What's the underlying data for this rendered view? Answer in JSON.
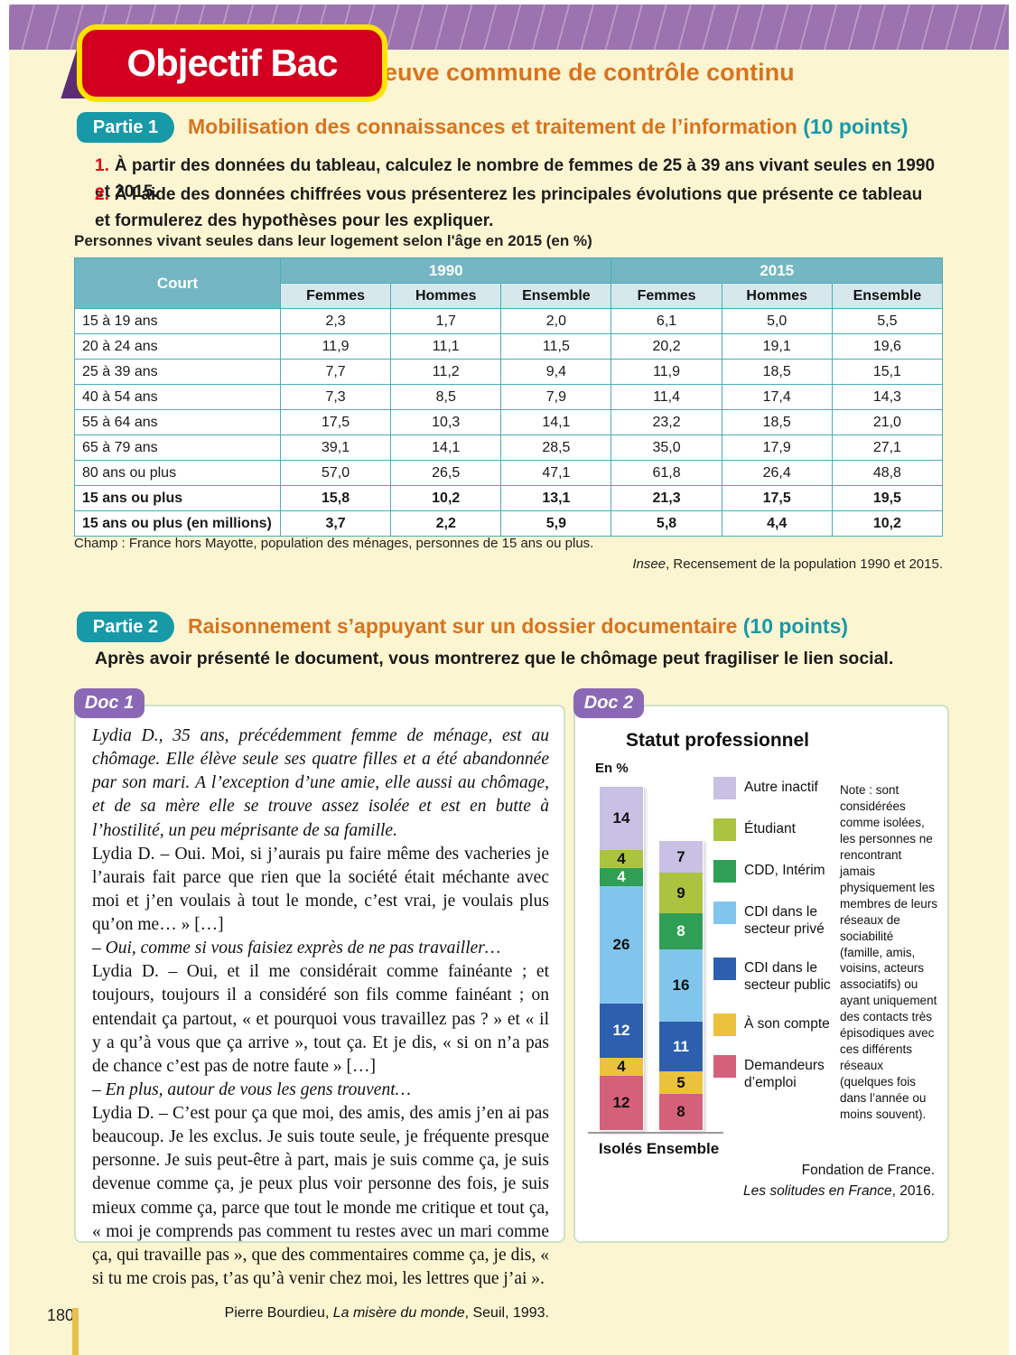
{
  "page": {
    "badge": "Objectif Bac",
    "subtitle": "Épreuve commune de contrôle continu",
    "page_number": "180"
  },
  "partie1": {
    "badge": "Partie 1",
    "title": "Mobilisation des connaissances et traitement de l’information",
    "points": "(10 points)",
    "questions": [
      {
        "num": "1.",
        "text": "À partir des données du tableau, calculez le nombre de femmes de 25 à 39 ans vivant seules en 1990 et 2015."
      },
      {
        "num": "2.",
        "text": "À l’aide des données chiffrées vous présenterez les principales évolutions que présente ce tableau et formulerez des hypothèses pour les expliquer."
      }
    ],
    "table": {
      "title": "Personnes vivant seules dans leur logement selon l'âge en 2015 (en %)",
      "corner_label": "Court",
      "year_headers": [
        "1990",
        "2015"
      ],
      "sub_headers": [
        "Femmes",
        "Hommes",
        "Ensemble"
      ],
      "rows": [
        {
          "label": "15 à 19 ans",
          "values": [
            "2,3",
            "1,7",
            "2,0",
            "6,1",
            "5,0",
            "5,5"
          ],
          "bold": false
        },
        {
          "label": "20 à 24 ans",
          "values": [
            "11,9",
            "11,1",
            "11,5",
            "20,2",
            "19,1",
            "19,6"
          ],
          "bold": false
        },
        {
          "label": "25 à 39 ans",
          "values": [
            "7,7",
            "11,2",
            "9,4",
            "11,9",
            "18,5",
            "15,1"
          ],
          "bold": false
        },
        {
          "label": "40 à 54 ans",
          "values": [
            "7,3",
            "8,5",
            "7,9",
            "11,4",
            "17,4",
            "14,3"
          ],
          "bold": false
        },
        {
          "label": "55 à 64 ans",
          "values": [
            "17,5",
            "10,3",
            "14,1",
            "23,2",
            "18,5",
            "21,0"
          ],
          "bold": false
        },
        {
          "label": "65 à 79 ans",
          "values": [
            "39,1",
            "14,1",
            "28,5",
            "35,0",
            "17,9",
            "27,1"
          ],
          "bold": false
        },
        {
          "label": "80 ans ou plus",
          "values": [
            "57,0",
            "26,5",
            "47,1",
            "61,8",
            "26,4",
            "48,8"
          ],
          "bold": false
        },
        {
          "label": "15 ans ou plus",
          "values": [
            "15,8",
            "10,2",
            "13,1",
            "21,3",
            "17,5",
            "19,5"
          ],
          "bold": true
        },
        {
          "label": "15 ans ou plus (en millions)",
          "values": [
            "3,7",
            "2,2",
            "5,9",
            "5,8",
            "4,4",
            "10,2"
          ],
          "bold": true
        }
      ],
      "champ": "Champ : France hors Mayotte, population des ménages, personnes de 15 ans ou plus.",
      "source_italic": "Insee",
      "source_rest": ", Recensement de la population 1990 et 2015."
    }
  },
  "partie2": {
    "badge": "Partie 2",
    "title": "Raisonnement s’appuyant sur un dossier documentaire",
    "points": "(10 points)",
    "instruction": "Après avoir présenté le document, vous montrerez que le chômage peut fragiliser le lien social."
  },
  "doc1": {
    "badge": "Doc 1",
    "paragraphs": [
      {
        "style": "italic",
        "text": "Lydia D., 35 ans, précédemment femme de ménage, est au chômage. Elle élève seule ses quatre filles et a été abandonnée par son mari. A l’exception d’une amie, elle aussi au chômage, et de sa mère elle se trouve assez isolée et est en butte à l’hostilité, un peu méprisante de sa famille."
      },
      {
        "style": "normal",
        "text": "Lydia D. – Oui. Moi, si j’aurais pu faire même des vacheries je l’aurais fait parce que rien que la société était méchante avec moi et j’en voulais à tout le monde, c’est vrai, je voulais plus qu’on me… » […]"
      },
      {
        "style": "italic",
        "text": "– Oui, comme si vous faisiez exprès de ne pas travailler…"
      },
      {
        "style": "normal",
        "text": "Lydia D. – Oui, et il me considérait comme fainéante ; et toujours, toujours il a considéré son fils comme fainéant ; on entendait ça partout, « et pourquoi vous travaillez pas ? » et « il y a qu’à vous que ça arrive », tout ça. Et je dis, « si on n’a pas de chance c’est pas de notre faute » […]"
      },
      {
        "style": "italic",
        "text": "– En plus, autour de vous les gens trouvent…"
      },
      {
        "style": "normal",
        "text": "Lydia D. – C’est pour ça que moi, des amis, des amis j’en ai pas beaucoup. Je les exclus. Je suis toute seule, je fréquente presque personne. Je suis peut-être à part, mais je suis comme ça, je suis devenue comme ça, je peux plus voir personne des fois, je suis mieux comme ça, parce que tout le monde me critique et tout ça, « moi je comprends pas comment tu restes avec un mari comme ça, qui travaille pas », que des commentaires comme ça, je dis, « si tu me crois pas, t’as qu’à venir chez moi, les lettres que j’ai »."
      }
    ],
    "source_pre": "Pierre Bourdieu, ",
    "source_italic": "La misère du monde",
    "source_post": ", Seuil, 1993."
  },
  "doc2": {
    "badge": "Doc 2",
    "chart_data": {
      "type": "bar",
      "stacked": true,
      "title": "Statut professionnel",
      "unit_label": "En %",
      "categories": [
        "Isolés",
        "Ensemble"
      ],
      "series": [
        {
          "name": "Autre inactif",
          "color": "#c8c1e3",
          "label_color": "#111111",
          "values": [
            14,
            7
          ]
        },
        {
          "name": "Étudiant",
          "color": "#abc440",
          "label_color": "#111111",
          "values": [
            4,
            9
          ]
        },
        {
          "name": "CDD, Intérim",
          "color": "#2f9f55",
          "label_color": "#ffffff",
          "values": [
            4,
            8
          ]
        },
        {
          "name": "CDI dans le secteur privé",
          "color": "#82c5ec",
          "label_color": "#111111",
          "values": [
            26,
            16
          ]
        },
        {
          "name": "CDI dans le secteur public",
          "color": "#2d5fae",
          "label_color": "#ffffff",
          "values": [
            12,
            11
          ]
        },
        {
          "name": "À son compte",
          "color": "#ecc23c",
          "label_color": "#111111",
          "values": [
            4,
            5
          ]
        },
        {
          "name": "Demandeurs d’emploi",
          "color": "#d5607a",
          "label_color": "#111111",
          "values": [
            12,
            8
          ]
        }
      ],
      "legend_position": "right"
    },
    "note": "Note : sont considérées comme isolées, les personnes ne rencontrant jamais physiquement les membres de leurs réseaux de sociabilité (famille, amis, voisins, acteurs associatifs) ou ayant uniquement des contacts très épisodiques avec ces différents réseaux (quelques fois dans l’année ou moins souvent).",
    "source_line1": "Fondation de France.",
    "source_line2_italic": "Les solitudes en France",
    "source_line2_post": ", 2016."
  }
}
